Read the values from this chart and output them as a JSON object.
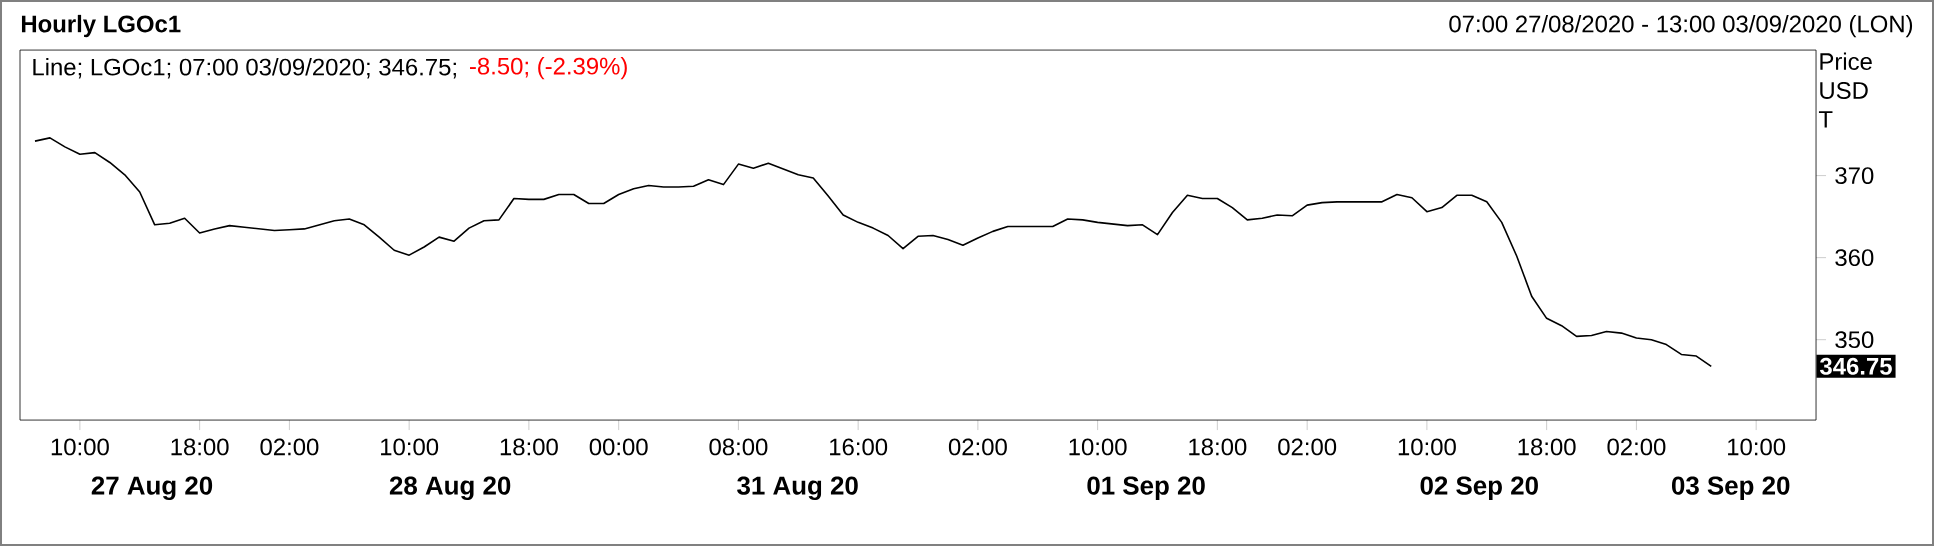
{
  "chart_data": {
    "type": "line",
    "title": "Hourly LGOc1",
    "subtitle": "Line; LGOc1; 07:00 03/09/2020; 346.75;",
    "annotations": [
      "-8.50; (-2.39%)",
      "07:00 27/08/2020 - 13:00 03/09/2020 (LON)",
      "346.75",
      "27 Aug 20",
      "28 Aug 20",
      "31 Aug 20",
      "01 Sep 20",
      "02 Sep 20",
      "03 Sep 20"
    ],
    "ylabel": "Price USD T",
    "color": "#000000",
    "grid": false,
    "categories": [
      null,
      null,
      null,
      "10:00",
      null,
      null,
      null,
      null,
      null,
      null,
      null,
      "18:00",
      null,
      null,
      null,
      null,
      null,
      "02:00",
      null,
      null,
      null,
      null,
      null,
      null,
      null,
      "10:00",
      null,
      null,
      null,
      null,
      null,
      null,
      null,
      "18:00",
      null,
      null,
      null,
      null,
      null,
      "00:00",
      null,
      null,
      null,
      null,
      null,
      null,
      null,
      "08:00",
      null,
      null,
      null,
      null,
      null,
      null,
      null,
      "16:00",
      null,
      null,
      null,
      null,
      null,
      null,
      null,
      "02:00",
      null,
      null,
      null,
      null,
      null,
      null,
      null,
      "10:00",
      null,
      null,
      null,
      null,
      null,
      null,
      null,
      "18:00",
      null,
      null,
      null,
      null,
      null,
      "02:00",
      null,
      null,
      null,
      null,
      null,
      null,
      null,
      "10:00",
      null,
      null,
      null,
      null,
      null,
      null,
      null,
      "18:00",
      null,
      null,
      null,
      null,
      null,
      "02:00",
      null,
      null,
      null,
      null,
      null,
      null,
      null,
      "10:00",
      null,
      null,
      null
    ],
    "values": [
      374.2,
      374.6,
      373.5,
      372.6,
      372.8,
      371.6,
      370.1,
      368.0,
      364.0,
      364.2,
      364.8,
      363.0,
      363.5,
      363.9,
      363.7,
      363.5,
      363.3,
      363.4,
      363.5,
      364.0,
      364.5,
      364.7,
      364.0,
      362.5,
      360.9,
      360.3,
      361.3,
      362.5,
      362.0,
      363.6,
      364.5,
      364.6,
      367.2,
      367.1,
      367.1,
      367.7,
      367.7,
      366.6,
      366.6,
      367.7,
      368.4,
      368.8,
      368.6,
      368.6,
      368.7,
      369.5,
      368.9,
      371.4,
      370.9,
      371.5,
      370.8,
      370.1,
      369.7,
      367.5,
      365.2,
      364.3,
      363.6,
      362.7,
      361.1,
      362.6,
      362.7,
      362.2,
      361.5,
      362.4,
      363.2,
      363.8,
      363.8,
      363.8,
      363.8,
      364.7,
      364.6,
      364.3,
      364.1,
      363.9,
      364.0,
      362.8,
      365.5,
      367.6,
      367.2,
      367.2,
      366.1,
      364.6,
      364.8,
      365.2,
      365.1,
      366.4,
      366.7,
      366.8,
      366.8,
      366.8,
      366.8,
      367.7,
      367.3,
      365.6,
      366.1,
      367.6,
      367.6,
      366.8,
      364.3,
      360.2,
      355.3,
      352.6,
      351.7,
      350.4,
      350.5,
      351.0,
      350.8,
      350.2,
      350.0,
      349.4,
      348.2,
      348.0,
      346.75,
      null,
      null,
      null,
      null,
      null,
      null
    ],
    "ylim": [
      340.2,
      385.3
    ],
    "yticks": [
      350,
      360,
      370
    ]
  }
}
